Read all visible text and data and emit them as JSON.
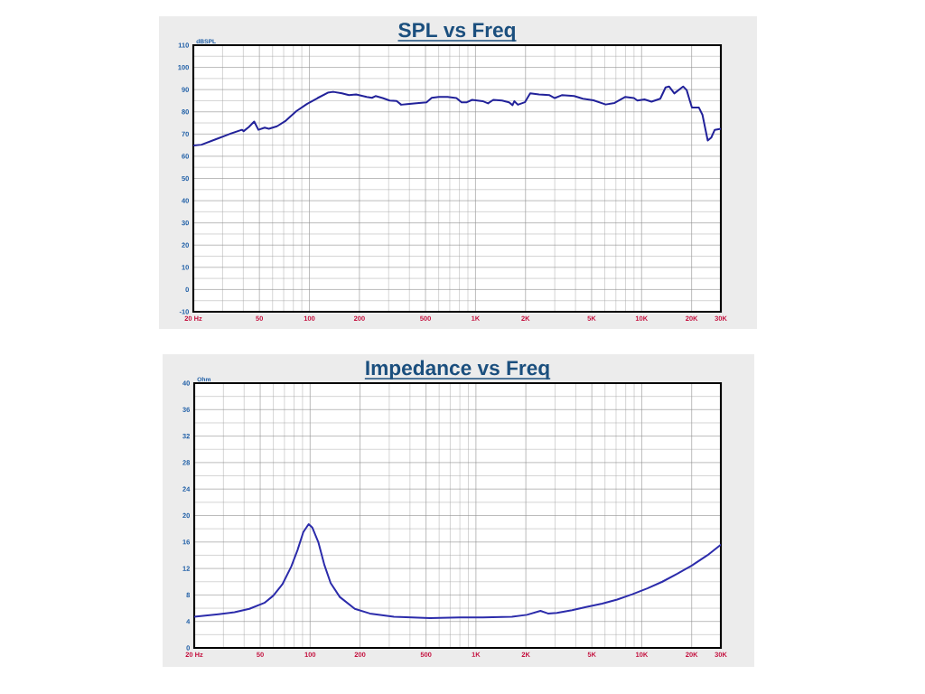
{
  "chart_data": [
    {
      "type": "line",
      "title": "SPL vs Freq",
      "ylabel": "dBSPL",
      "series": [
        {
          "color": "#22229a",
          "x": [
            20,
            22.4,
            27.2,
            33,
            39.2,
            40.2,
            43.2,
            46.5,
            49.3,
            53.8,
            57,
            63.8,
            72.1,
            83.4,
            96.5,
            112,
            129,
            139,
            157,
            173,
            191,
            221,
            238,
            250,
            276,
            304,
            335,
            357,
            387,
            427,
            507,
            545,
            601,
            679,
            767,
            824,
            887,
            954,
            1104,
            1189,
            1279,
            1444,
            1592,
            1671,
            1713,
            1799,
            1982,
            2134,
            2410,
            2789,
            3000,
            3308,
            3922,
            4431,
            5129,
            6081,
            6871,
            7949,
            8986,
            9432,
            10400,
            11470,
            12950,
            13940,
            14630,
            15740,
            17780,
            18670,
            20080,
            22130,
            23240,
            25010,
            26260,
            27560,
            30000
          ],
          "values": [
            64.8,
            65.2,
            67.6,
            70.0,
            71.9,
            71.3,
            73.2,
            75.6,
            71.9,
            72.9,
            72.4,
            73.5,
            76.0,
            80.3,
            83.5,
            86.2,
            88.6,
            89.0,
            88.3,
            87.5,
            87.8,
            86.7,
            86.3,
            87.1,
            86.2,
            85.1,
            84.9,
            83.2,
            83.5,
            83.8,
            84.3,
            86.3,
            86.7,
            86.7,
            86.2,
            84.3,
            84.3,
            85.4,
            84.8,
            83.8,
            85.4,
            85.1,
            84.3,
            83.0,
            84.8,
            83.2,
            84.3,
            88.3,
            87.8,
            87.5,
            86.2,
            87.5,
            87.1,
            85.9,
            85.2,
            83.3,
            84.0,
            86.7,
            86.2,
            85.1,
            85.6,
            84.6,
            85.9,
            91.0,
            91.4,
            88.3,
            91.4,
            89.8,
            81.9,
            81.9,
            78.7,
            67.1,
            68.4,
            71.9,
            72.4
          ]
        }
      ],
      "xlim": [
        20,
        30000
      ],
      "ylim": [
        -10,
        110
      ],
      "xticks": [
        {
          "value": 20,
          "label": "20 Hz"
        },
        50,
        100,
        200,
        500,
        {
          "value": 1000,
          "label": "1K"
        },
        {
          "value": 2000,
          "label": "2K"
        },
        {
          "value": 5000,
          "label": "5K"
        },
        {
          "value": 10000,
          "label": "10K"
        },
        {
          "value": 20000,
          "label": "20K"
        },
        {
          "value": 30000,
          "label": "30K"
        }
      ],
      "yticks": [
        -10,
        0,
        10,
        20,
        30,
        40,
        50,
        60,
        70,
        80,
        90,
        100,
        110
      ],
      "log": "x",
      "grid": true
    },
    {
      "type": "line",
      "title": "Impedance vs Freq",
      "ylabel": "Ohm",
      "series": [
        {
          "color": "#2c2cab",
          "x": [
            20,
            28,
            35,
            43,
            53,
            60,
            68,
            77,
            84,
            91,
            98,
            103,
            112,
            122,
            133,
            151,
            186,
            229,
            320,
            528,
            800,
            1100,
            1650,
            2030,
            2450,
            2720,
            3080,
            3800,
            4680,
            5770,
            7110,
            8770,
            10810,
            13310,
            16400,
            20220,
            24900,
            30000
          ],
          "values": [
            4.7,
            5.1,
            5.4,
            5.9,
            6.8,
            7.9,
            9.6,
            12.3,
            14.8,
            17.5,
            18.7,
            18.2,
            16.0,
            12.5,
            9.8,
            7.7,
            5.9,
            5.2,
            4.7,
            4.5,
            4.6,
            4.6,
            4.7,
            5.0,
            5.6,
            5.2,
            5.3,
            5.7,
            6.2,
            6.7,
            7.3,
            8.1,
            9.0,
            10.0,
            11.2,
            12.5,
            14.0,
            15.6
          ]
        }
      ],
      "xlim": [
        20,
        30000
      ],
      "ylim": [
        0,
        40
      ],
      "xticks": [
        {
          "value": 20,
          "label": "20 Hz"
        },
        50,
        100,
        200,
        500,
        {
          "value": 1000,
          "label": "1K"
        },
        {
          "value": 2000,
          "label": "2K"
        },
        {
          "value": 5000,
          "label": "5K"
        },
        {
          "value": 10000,
          "label": "10K"
        },
        {
          "value": 20000,
          "label": "20K"
        },
        {
          "value": 30000,
          "label": "30K"
        }
      ],
      "yticks": [
        0,
        4,
        8,
        12,
        16,
        20,
        24,
        28,
        32,
        36,
        40
      ],
      "log": "x",
      "grid": true
    }
  ]
}
